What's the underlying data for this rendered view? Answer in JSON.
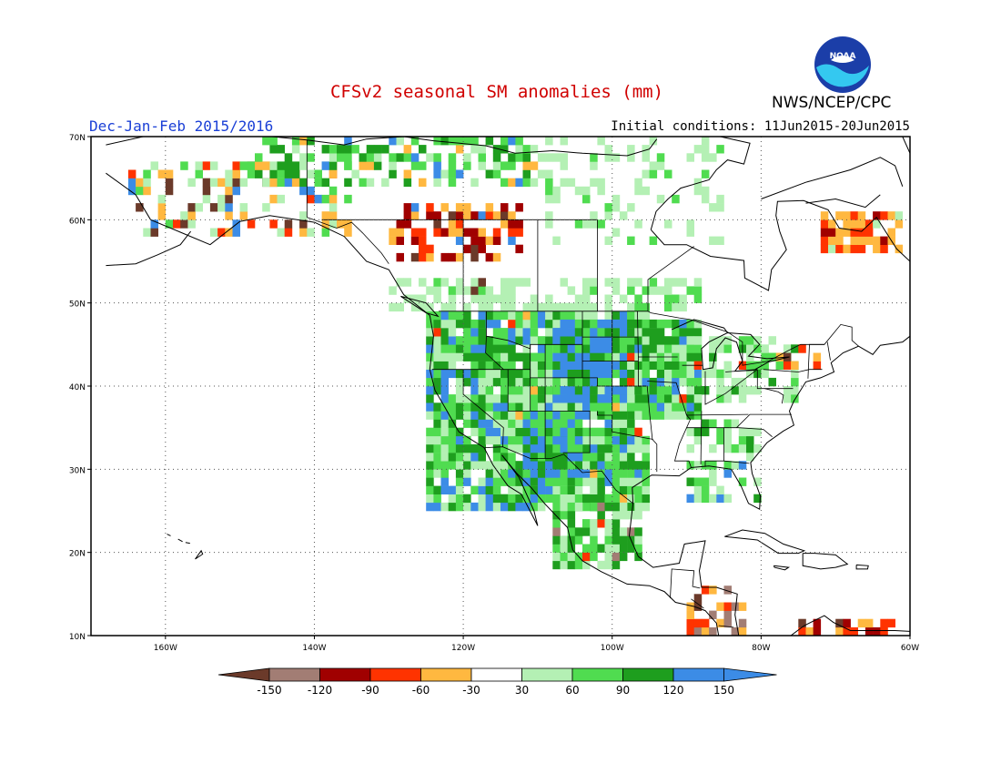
{
  "header": {
    "title": "CFSv2 seasonal SM anomalies (mm)",
    "season": "Dec-Jan-Feb 2015/2016",
    "initial_conditions": "Initial conditions: 11Jun2015-20Jun2015",
    "agency": "NWS/NCEP/CPC",
    "logo_text": "NOAA"
  },
  "map": {
    "region": "North America",
    "lon_range": [
      -170,
      -60
    ],
    "lat_range": [
      10,
      70
    ],
    "lat_ticks": [
      "70N",
      "60N",
      "50N",
      "40N",
      "30N",
      "20N",
      "10N"
    ],
    "lon_ticks": [
      "160W",
      "140W",
      "120W",
      "100W",
      "80W",
      "60W"
    ],
    "gridlines": "dotted"
  },
  "legend": {
    "labels": [
      "-150",
      "-120",
      "-90",
      "-60",
      "-30",
      "30",
      "60",
      "90",
      "120",
      "150"
    ],
    "colors": [
      "#6b3a2a",
      "#a27d74",
      "#a00000",
      "#ff3300",
      "#ffb840",
      "#ffffff",
      "#b4f0b4",
      "#50dc50",
      "#1e9e1e",
      "#3c8ce6",
      "#3c8ce6"
    ]
  },
  "colors": {
    "title": "#d00000",
    "season": "#1a3fd6",
    "logo_blue": "#1b3ea8",
    "logo_cyan": "#34c8f0"
  }
}
